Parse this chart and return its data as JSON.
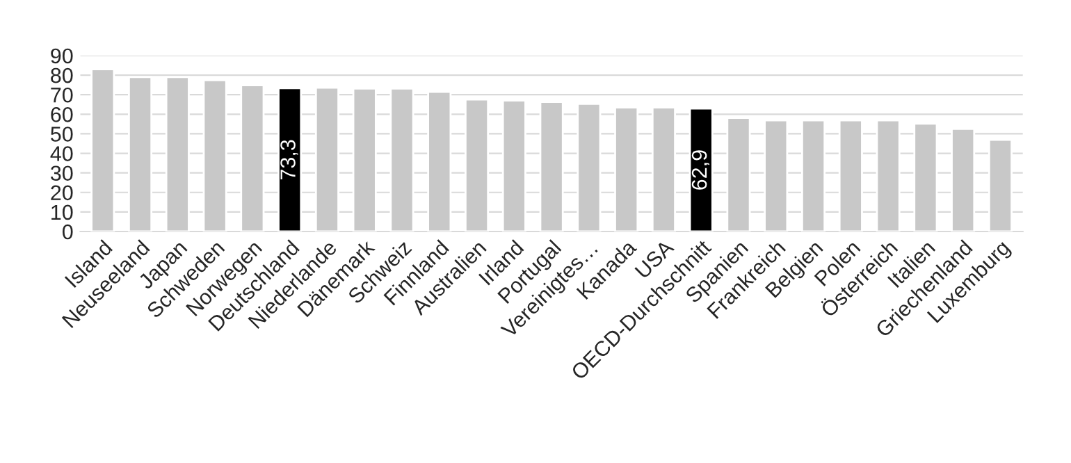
{
  "chart_data": {
    "type": "bar",
    "categories": [
      "Island",
      "Neuseeland",
      "Japan",
      "Schweden",
      "Norwegen",
      "Deutschland",
      "Niederlande",
      "Dänemark",
      "Schweiz",
      "Finnland",
      "Australien",
      "Irland",
      "Portugal",
      "Vereinigtes…",
      "Kanada",
      "USA",
      "OECD-Durchschnitt",
      "Spanien",
      "Frankreich",
      "Belgien",
      "Polen",
      "Österreich",
      "Italien",
      "Griechenland",
      "Luxemburg"
    ],
    "values": [
      83,
      79,
      79,
      77.4,
      74.8,
      73.3,
      73.6,
      73.1,
      73.1,
      71.4,
      67.5,
      67,
      66.3,
      65.3,
      63.4,
      63.4,
      62.9,
      58.1,
      56.9,
      56.9,
      56.9,
      56.9,
      55.2,
      52.5,
      46.9
    ],
    "colors": [
      "#c8c8c8",
      "#c8c8c8",
      "#c8c8c8",
      "#c8c8c8",
      "#c8c8c8",
      "#000000",
      "#c8c8c8",
      "#c8c8c8",
      "#c8c8c8",
      "#c8c8c8",
      "#c8c8c8",
      "#c8c8c8",
      "#c8c8c8",
      "#c8c8c8",
      "#c8c8c8",
      "#c8c8c8",
      "#000000",
      "#c8c8c8",
      "#c8c8c8",
      "#c8c8c8",
      "#c8c8c8",
      "#c8c8c8",
      "#c8c8c8",
      "#c8c8c8",
      "#c8c8c8"
    ],
    "value_labels": [
      null,
      null,
      null,
      null,
      null,
      "73,3",
      null,
      null,
      null,
      null,
      null,
      null,
      null,
      null,
      null,
      null,
      "62,9",
      null,
      null,
      null,
      null,
      null,
      null,
      null,
      null
    ],
    "ylim": [
      0,
      90
    ],
    "yticks": [
      0,
      10,
      20,
      30,
      40,
      50,
      60,
      70,
      80,
      90
    ],
    "grid": "y",
    "legend": false
  }
}
